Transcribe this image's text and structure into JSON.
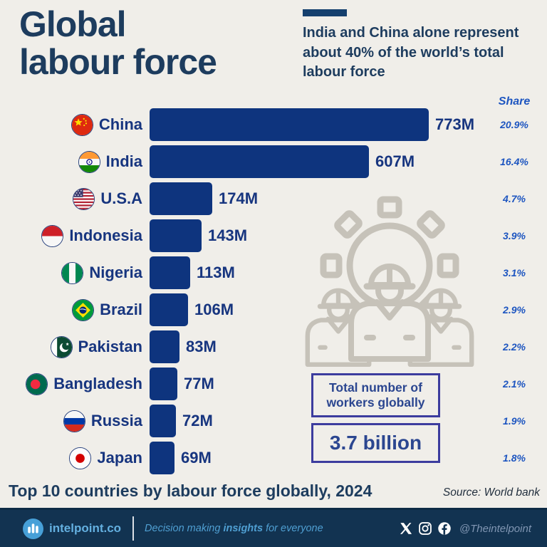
{
  "header": {
    "title_line1": "Global",
    "title_line2": "labour force",
    "subtitle": "India and China alone represent about 40% of the world’s total labour force"
  },
  "share_column": {
    "header": "Share"
  },
  "chart_data": {
    "type": "bar",
    "orientation": "horizontal",
    "title": "Top 10 countries by labour force globally, 2024",
    "source": "Source: World bank",
    "unit": "millions of workers",
    "bar_color": "#0e347e",
    "x_max": 773,
    "categories": [
      "China",
      "India",
      "U.S.A",
      "Indonesia",
      "Nigeria",
      "Brazil",
      "Pakistan",
      "Bangladesh",
      "Russia",
      "Japan"
    ],
    "values": [
      773,
      607,
      174,
      143,
      113,
      106,
      83,
      77,
      72,
      69
    ],
    "rows": [
      {
        "country": "China",
        "flag": "china",
        "value": 773,
        "value_label": "773M",
        "share": "20.9%"
      },
      {
        "country": "India",
        "flag": "india",
        "value": 607,
        "value_label": "607M",
        "share": "16.4%"
      },
      {
        "country": "U.S.A",
        "flag": "usa",
        "value": 174,
        "value_label": "174M",
        "share": "4.7%"
      },
      {
        "country": "Indonesia",
        "flag": "indonesia",
        "value": 143,
        "value_label": "143M",
        "share": "3.9%"
      },
      {
        "country": "Nigeria",
        "flag": "nigeria",
        "value": 113,
        "value_label": "113M",
        "share": "3.1%"
      },
      {
        "country": "Brazil",
        "flag": "brazil",
        "value": 106,
        "value_label": "106M",
        "share": "2.9%"
      },
      {
        "country": "Pakistan",
        "flag": "pakistan",
        "value": 83,
        "value_label": "83M",
        "share": "2.2%"
      },
      {
        "country": "Bangladesh",
        "flag": "bangladesh",
        "value": 77,
        "value_label": "77M",
        "share": "2.1%"
      },
      {
        "country": "Russia",
        "flag": "russia",
        "value": 72,
        "value_label": "72M",
        "share": "1.9%"
      },
      {
        "country": "Japan",
        "flag": "japan",
        "value": 69,
        "value_label": "69M",
        "share": "1.8%"
      }
    ]
  },
  "callout": {
    "label": "Total number of workers globally",
    "value": "3.7 billion"
  },
  "watermark": {
    "name": "workers-gear-illustration",
    "color": "#c6c2b9"
  },
  "footer": {
    "brand": "intelpoint.co",
    "tagline": {
      "prefix": "Decision making ",
      "bold": "insights",
      "suffix": " for everyone"
    },
    "handle": "@Theintelpoint",
    "social_icons": [
      "x-icon",
      "instagram-icon",
      "facebook-icon"
    ]
  },
  "colors": {
    "background": "#f0eee9",
    "title_navy": "#1d3c5e",
    "bar_navy": "#0e347e",
    "label_navy": "#17357f",
    "share_blue": "#1d55c0",
    "box_border": "#3c3c9e",
    "footer_bg": "#123351",
    "footer_blue": "#4f9fd2"
  }
}
